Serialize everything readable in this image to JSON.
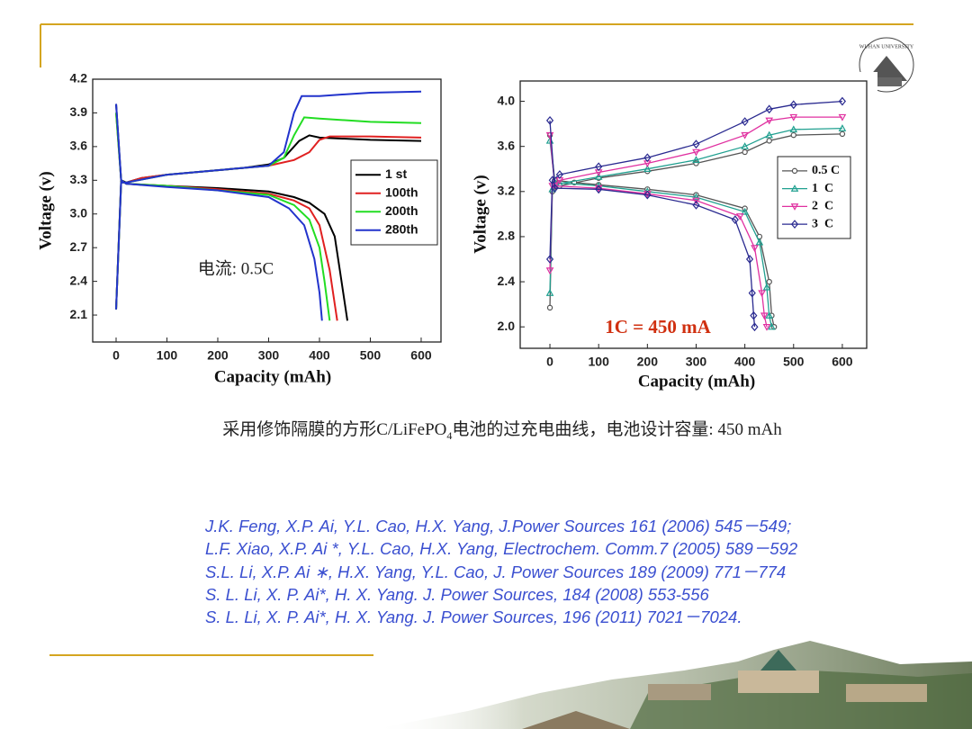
{
  "chart_data": [
    {
      "type": "line",
      "xlabel": "Capacity (mAh)",
      "ylabel": "Voltage (v)",
      "annotation": "电流: 0.5C",
      "annotation_color": "#222222",
      "xlim": [
        -46,
        639
      ],
      "ylim": [
        1.86,
        4.2
      ],
      "xticks": [
        0,
        100,
        200,
        300,
        400,
        500,
        600
      ],
      "yticks": [
        2.1,
        2.4,
        2.7,
        {
          "value": 3,
          "label": "3.0"
        },
        3.3,
        3.6,
        3.9,
        4.2
      ],
      "series": [
        {
          "name": "1 st",
          "color": "#000000",
          "marker": "none",
          "x": [
            0,
            10,
            20,
            50,
            100,
            150,
            200,
            250,
            300,
            330,
            360,
            380,
            400,
            500,
            600,
            null,
            0,
            10,
            20,
            50,
            100,
            200,
            300,
            350,
            380,
            410,
            430,
            440,
            450,
            455
          ],
          "values": [
            2.15,
            3.3,
            3.28,
            3.32,
            3.35,
            3.37,
            3.39,
            3.41,
            3.44,
            3.5,
            3.65,
            3.7,
            3.68,
            3.66,
            3.65,
            null,
            3.98,
            3.3,
            3.27,
            3.26,
            3.25,
            3.23,
            3.2,
            3.15,
            3.1,
            3.0,
            2.8,
            2.5,
            2.2,
            2.05
          ]
        },
        {
          "name": "100th",
          "color": "#e02020",
          "marker": "none",
          "x": [
            0,
            10,
            20,
            50,
            100,
            200,
            300,
            350,
            380,
            400,
            420,
            500,
            600,
            null,
            0,
            10,
            20,
            100,
            200,
            300,
            350,
            380,
            400,
            420,
            430,
            435
          ],
          "values": [
            2.15,
            3.28,
            3.28,
            3.32,
            3.35,
            3.39,
            3.43,
            3.48,
            3.55,
            3.66,
            3.69,
            3.69,
            3.68,
            null,
            3.9,
            3.3,
            3.27,
            3.25,
            3.22,
            3.18,
            3.12,
            3.05,
            2.9,
            2.5,
            2.2,
            2.05
          ]
        },
        {
          "name": "200th",
          "color": "#22dd22",
          "marker": "none",
          "x": [
            0,
            10,
            20,
            100,
            200,
            300,
            330,
            350,
            370,
            400,
            500,
            600,
            null,
            0,
            10,
            20,
            100,
            200,
            300,
            350,
            380,
            400,
            410,
            420
          ],
          "values": [
            2.15,
            3.28,
            3.28,
            3.35,
            3.39,
            3.43,
            3.5,
            3.7,
            3.86,
            3.85,
            3.82,
            3.81,
            null,
            3.9,
            3.3,
            3.27,
            3.25,
            3.21,
            3.17,
            3.08,
            2.95,
            2.7,
            2.4,
            2.05
          ]
        },
        {
          "name": "280th",
          "color": "#2233cc",
          "marker": "none",
          "x": [
            0,
            10,
            20,
            100,
            200,
            300,
            330,
            350,
            365,
            400,
            500,
            600,
            null,
            0,
            10,
            20,
            100,
            200,
            300,
            340,
            370,
            390,
            400,
            405
          ],
          "values": [
            2.15,
            3.28,
            3.28,
            3.35,
            3.39,
            3.43,
            3.55,
            3.9,
            4.05,
            4.05,
            4.08,
            4.09,
            null,
            3.98,
            3.3,
            3.27,
            3.24,
            3.21,
            3.15,
            3.05,
            2.9,
            2.6,
            2.3,
            2.05
          ]
        }
      ]
    },
    {
      "type": "line",
      "xlabel": "Capacity (mAh)",
      "ylabel": "Voltage (v)",
      "annotation": "1C = 450 mA",
      "annotation_color": "#d03010",
      "xlim": [
        -61,
        650
      ],
      "ylim": [
        1.81,
        4.18
      ],
      "xticks": [
        0,
        100,
        200,
        300,
        400,
        500,
        600
      ],
      "yticks": [
        {
          "value": 2,
          "label": "2.0"
        },
        2.4,
        2.8,
        3.2,
        3.6,
        {
          "value": 4,
          "label": "4.0"
        }
      ],
      "series": [
        {
          "name": "0.5 C",
          "color": "#555555",
          "marker": "circle",
          "x": [
            0,
            5,
            20,
            100,
            200,
            300,
            400,
            450,
            500,
            600,
            null,
            0,
            10,
            50,
            100,
            200,
            300,
            400,
            430,
            450,
            455,
            460
          ],
          "values": [
            2.17,
            3.2,
            3.25,
            3.32,
            3.38,
            3.45,
            3.55,
            3.65,
            3.7,
            3.71,
            null,
            3.7,
            3.3,
            3.28,
            3.26,
            3.22,
            3.17,
            3.05,
            2.8,
            2.4,
            2.1,
            2.0
          ]
        },
        {
          "name": "1  C",
          "color": "#20a090",
          "marker": "triangle-up",
          "x": [
            0,
            5,
            20,
            100,
            200,
            300,
            400,
            450,
            500,
            600,
            null,
            0,
            10,
            100,
            200,
            300,
            400,
            430,
            445,
            450,
            455
          ],
          "values": [
            2.3,
            3.22,
            3.27,
            3.33,
            3.4,
            3.48,
            3.6,
            3.7,
            3.75,
            3.76,
            null,
            3.65,
            3.28,
            3.25,
            3.2,
            3.15,
            3.02,
            2.75,
            2.35,
            2.1,
            2.0
          ]
        },
        {
          "name": "2  C",
          "color": "#e030a0",
          "marker": "triangle-down",
          "x": [
            0,
            5,
            20,
            100,
            200,
            300,
            400,
            450,
            500,
            600,
            null,
            0,
            10,
            100,
            200,
            300,
            390,
            420,
            435,
            440,
            445
          ],
          "values": [
            2.5,
            3.25,
            3.3,
            3.37,
            3.45,
            3.55,
            3.7,
            3.83,
            3.86,
            3.86,
            null,
            3.7,
            3.25,
            3.23,
            3.18,
            3.12,
            2.98,
            2.7,
            2.3,
            2.1,
            2.0
          ]
        },
        {
          "name": "3  C",
          "color": "#2a2a90",
          "marker": "diamond",
          "x": [
            0,
            5,
            20,
            100,
            200,
            300,
            400,
            450,
            500,
            600,
            null,
            0,
            10,
            100,
            200,
            300,
            380,
            410,
            415,
            418,
            420
          ],
          "values": [
            2.6,
            3.3,
            3.35,
            3.42,
            3.5,
            3.62,
            3.82,
            3.93,
            3.97,
            4.0,
            null,
            3.83,
            3.23,
            3.22,
            3.17,
            3.08,
            2.95,
            2.6,
            2.3,
            2.1,
            2.0
          ]
        }
      ]
    }
  ],
  "caption": [
    "采用修饰隔膜的方形C/LiFePO",
    "4",
    "电池的过充电曲线，电池设计容量: 450 mAh"
  ],
  "logo_text": "WUHAN UNIVERSITY",
  "references": [
    "J.K. Feng, X.P. Ai, Y.L. Cao, H.X. Yang, J.Power Sources 161 (2006) 545－549;",
    "L.F. Xiao, X.P. Ai *, Y.L. Cao, H.X. Yang, Electrochem. Comm.7 (2005) 589－592",
    "S.L. Li, X.P. Ai ∗, H.X. Yang, Y.L. Cao, J. Power Sources 189 (2009) 771－774",
    "S. L. Li, X. P. Ai*, H. X. Yang. J. Power Sources, 184 (2008) 553-556",
    "S. L. Li, X. P. Ai*, H. X. Yang. J. Power Sources, 196 (2011) 7021－7024."
  ]
}
